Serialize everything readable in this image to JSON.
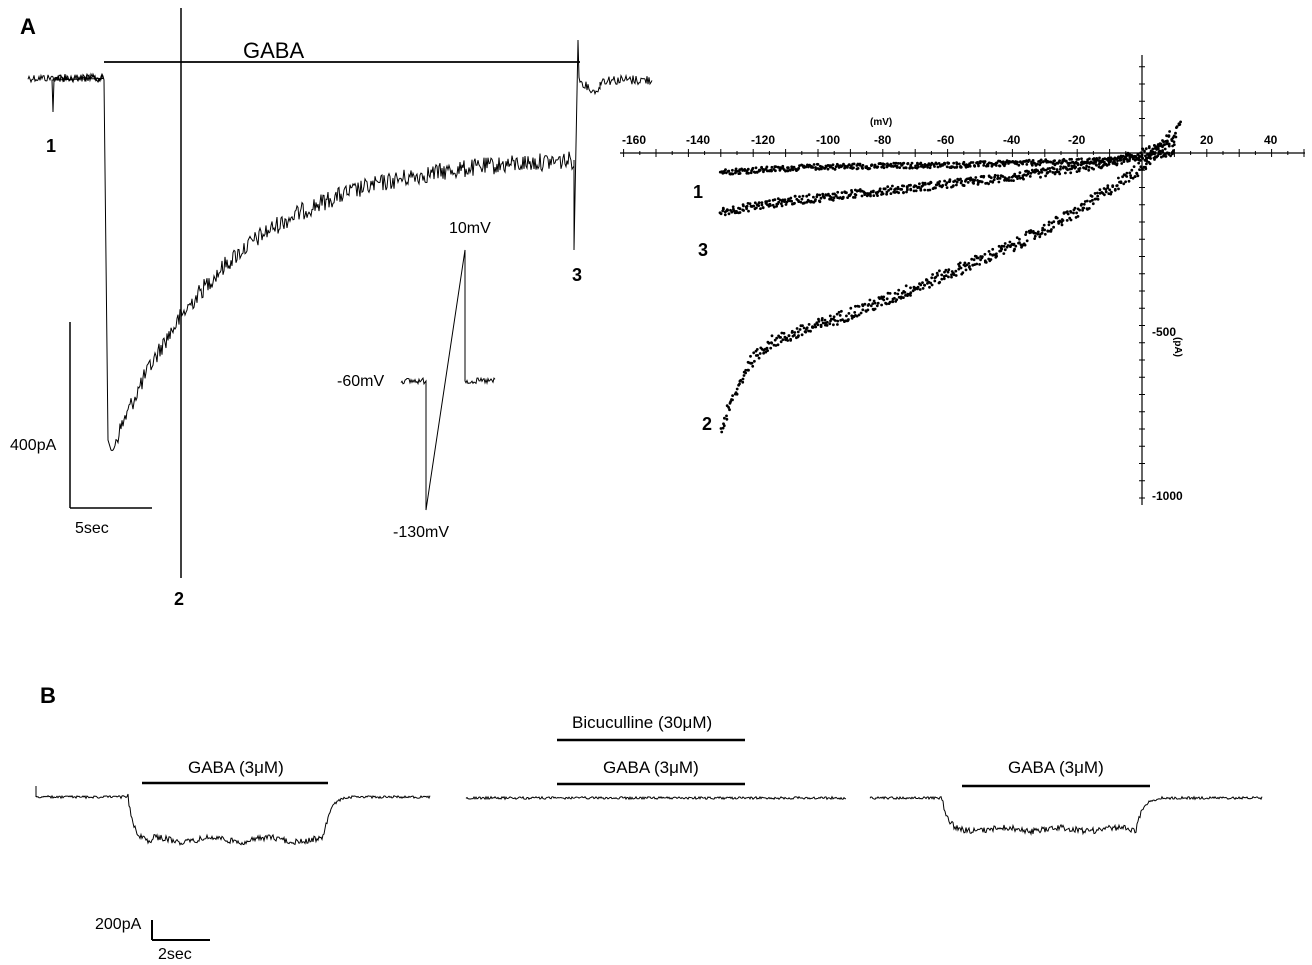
{
  "panelA": {
    "letter": "A",
    "drug_label": "GABA",
    "trace_labels": [
      "1",
      "2",
      "3"
    ],
    "scale_current": "400pA",
    "scale_time": "5sec",
    "ramp_hold": "-60mV",
    "ramp_start": "-130mV",
    "ramp_end": "10mV",
    "iv_x_unit": "(mV)",
    "iv_y_unit": "(pA)",
    "iv_x_ticks": [
      "-160",
      "-140",
      "-120",
      "-100",
      "-80",
      "-60",
      "-40",
      "-20",
      "20",
      "40"
    ],
    "iv_y_ticks": [
      "-500",
      "-1000"
    ],
    "iv_curve_labels": [
      "1",
      "3",
      "2"
    ]
  },
  "panelB": {
    "letter": "B",
    "gaba_label": "GABA (3μM)",
    "antagonist_label": "Bicuculline (30μM)",
    "scale_current": "200pA",
    "scale_time": "2sec"
  },
  "chart_data": [
    {
      "type": "scatter",
      "title": "",
      "xlabel": "(mV)",
      "ylabel": "(pA)",
      "xlim": [
        -160,
        40
      ],
      "ylim": [
        -1000,
        150
      ],
      "grid": false,
      "series": [
        {
          "name": "1",
          "x": [
            -130,
            -100,
            -60,
            -20,
            0,
            10
          ],
          "y": [
            -55,
            -40,
            -35,
            -25,
            -15,
            0
          ]
        },
        {
          "name": "3",
          "x": [
            -130,
            -110,
            -80,
            -40,
            -10,
            0,
            10
          ],
          "y": [
            -170,
            -140,
            -110,
            -70,
            -30,
            0,
            30
          ]
        },
        {
          "name": "2",
          "x": [
            -130,
            -122,
            -115,
            -100,
            -80,
            -60,
            -40,
            -20,
            0,
            12
          ],
          "y": [
            -800,
            -620,
            -550,
            -500,
            -430,
            -350,
            -270,
            -170,
            -40,
            80
          ]
        }
      ]
    }
  ]
}
